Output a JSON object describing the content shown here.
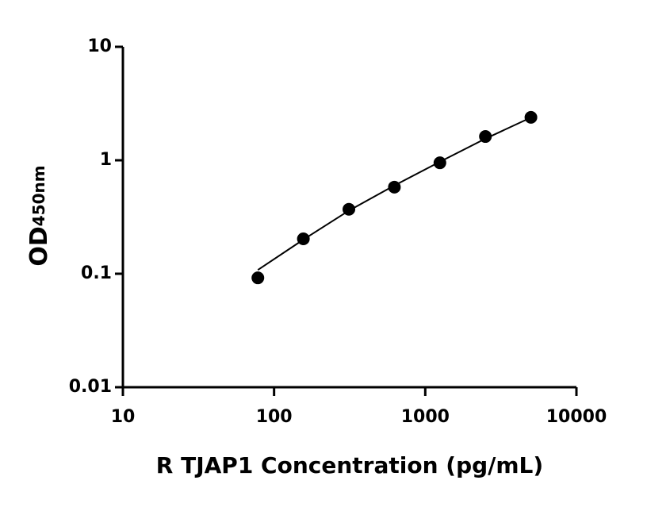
{
  "chart_data": {
    "type": "scatter",
    "xlabel": "R TJAP1 Concentration (pg/mL)",
    "ylabel": "OD",
    "ylabel_sub": "450nm",
    "x": [
      78.125,
      156.25,
      312.5,
      625,
      1250,
      2500,
      5000
    ],
    "values": [
      0.092,
      0.203,
      0.37,
      0.58,
      0.95,
      1.62,
      2.39
    ],
    "fit": {
      "x": [
        78.125,
        156.25,
        312.5,
        625,
        1250,
        2500,
        5000
      ],
      "values": [
        0.108,
        0.2,
        0.36,
        0.6,
        0.97,
        1.55,
        2.38
      ]
    },
    "color": "#000000",
    "xscale": "log",
    "yscale": "log",
    "xlim": [
      10,
      10000
    ],
    "ylim": [
      0.01,
      10
    ],
    "xticks": [
      10,
      100,
      1000,
      10000
    ],
    "yticks": [
      0.01,
      0.1,
      1,
      10
    ],
    "grid": false
  }
}
